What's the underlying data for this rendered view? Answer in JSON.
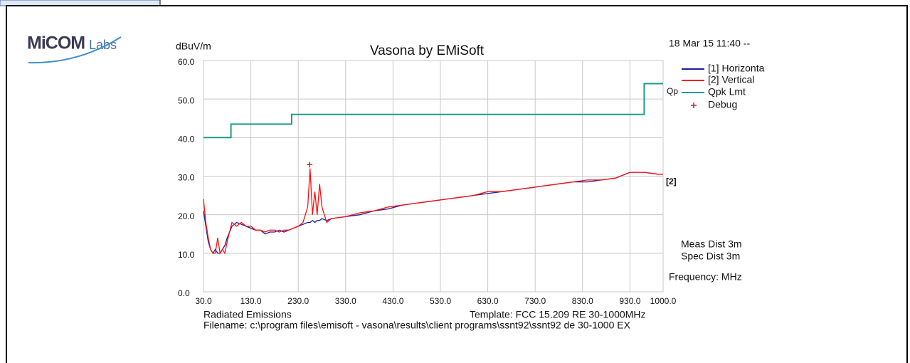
{
  "logo": {
    "main": "MiCOM",
    "suffix": "Labs"
  },
  "chart_data": {
    "type": "line",
    "title": "Vasona by EMiSoft",
    "y_label": "dBuV/m",
    "timestamp": "18 Mar 15 11:40 --",
    "x_label": "Frequency: MHz",
    "annotations": [
      "Meas Dist 3m",
      "Spec Dist 3m",
      "Radiated Emissions",
      "Template: FCC 15.209 RE 30-1000MHz",
      "Filename: c:\\program files\\emisoft - vasona\\results\\client programs\\ssnt92\\ssnt92 de 30-1000 EX"
    ],
    "limit_tag": "Qp",
    "trace_tag": "[2]",
    "xlim": [
      30,
      1000
    ],
    "ylim": [
      0,
      60
    ],
    "xticks": [
      {
        "value": 30,
        "label": "30.0"
      },
      {
        "value": 130,
        "label": "130.0"
      },
      {
        "value": 230,
        "label": "230.0"
      },
      {
        "value": 330,
        "label": "330.0"
      },
      {
        "value": 430,
        "label": "430.0"
      },
      {
        "value": 530,
        "label": "530.0"
      },
      {
        "value": 630,
        "label": "630.0"
      },
      {
        "value": 730,
        "label": "730.0"
      },
      {
        "value": 830,
        "label": "830.0"
      },
      {
        "value": 930,
        "label": "930.0"
      },
      {
        "value": 1000,
        "label": "1000.0"
      }
    ],
    "yticks": [
      {
        "value": 0,
        "label": "0.0"
      },
      {
        "value": 10,
        "label": "10.0"
      },
      {
        "value": 20,
        "label": "20.0"
      },
      {
        "value": 30,
        "label": "30.0"
      },
      {
        "value": 40,
        "label": "40.0"
      },
      {
        "value": 50,
        "label": "50.0"
      },
      {
        "value": 60,
        "label": "60.0"
      }
    ],
    "grid": true,
    "x": [
      30,
      35,
      40,
      45,
      50,
      55,
      60,
      65,
      70,
      75,
      80,
      90,
      100,
      110,
      120,
      130,
      140,
      150,
      160,
      170,
      180,
      190,
      200,
      210,
      220,
      230,
      240,
      250,
      255,
      260,
      265,
      270,
      275,
      280,
      290,
      300,
      330,
      360,
      390,
      420,
      450,
      480,
      510,
      540,
      570,
      600,
      630,
      660,
      690,
      720,
      750,
      780,
      810,
      840,
      870,
      900,
      930,
      960,
      990,
      1000
    ],
    "series": [
      {
        "name": "[1] Horizonta",
        "color": "#1c1c9c",
        "values": [
          21,
          17,
          13,
          11,
          10,
          11,
          10,
          10,
          11,
          12,
          14,
          17,
          18,
          17.5,
          17,
          16.5,
          16,
          16,
          15,
          15.5,
          15.5,
          16,
          15.5,
          16,
          16.5,
          17,
          17.5,
          18,
          18,
          18.5,
          18,
          18.5,
          18.5,
          19,
          18.5,
          19,
          19.5,
          20,
          21,
          21.5,
          22.5,
          23,
          23.5,
          24,
          24.5,
          25,
          25.5,
          26,
          26.5,
          27,
          27.5,
          28,
          28.5,
          28.5,
          29,
          29.5,
          31,
          31,
          30.5,
          30.5
        ]
      },
      {
        "name": "[2] Vertical",
        "color": "#ff1010",
        "values": [
          24,
          18,
          14,
          11,
          10,
          10,
          14,
          10,
          11,
          10,
          13,
          18,
          17,
          18,
          17,
          17,
          16,
          16,
          15.5,
          16,
          16,
          15.5,
          16,
          16,
          16.5,
          17,
          18,
          22,
          32,
          20,
          26,
          20,
          28,
          22,
          18,
          19,
          19.5,
          20.5,
          21,
          22,
          22.5,
          23,
          23.5,
          24,
          24.5,
          25,
          26,
          26,
          26.5,
          27,
          27.5,
          28,
          28.5,
          29,
          29,
          29.5,
          31,
          31,
          30.5,
          30.5
        ]
      },
      {
        "name": "Qpk Lmt",
        "color": "#1e9a8c",
        "x": [
          30,
          88,
          88,
          216,
          216,
          960,
          960,
          1000
        ],
        "values": [
          40,
          40,
          43.5,
          43.5,
          46,
          46,
          54,
          54
        ]
      },
      {
        "name": "Debug",
        "color": "#a83030",
        "marker": "+",
        "x": [
          254
        ],
        "values": [
          33
        ]
      }
    ]
  }
}
